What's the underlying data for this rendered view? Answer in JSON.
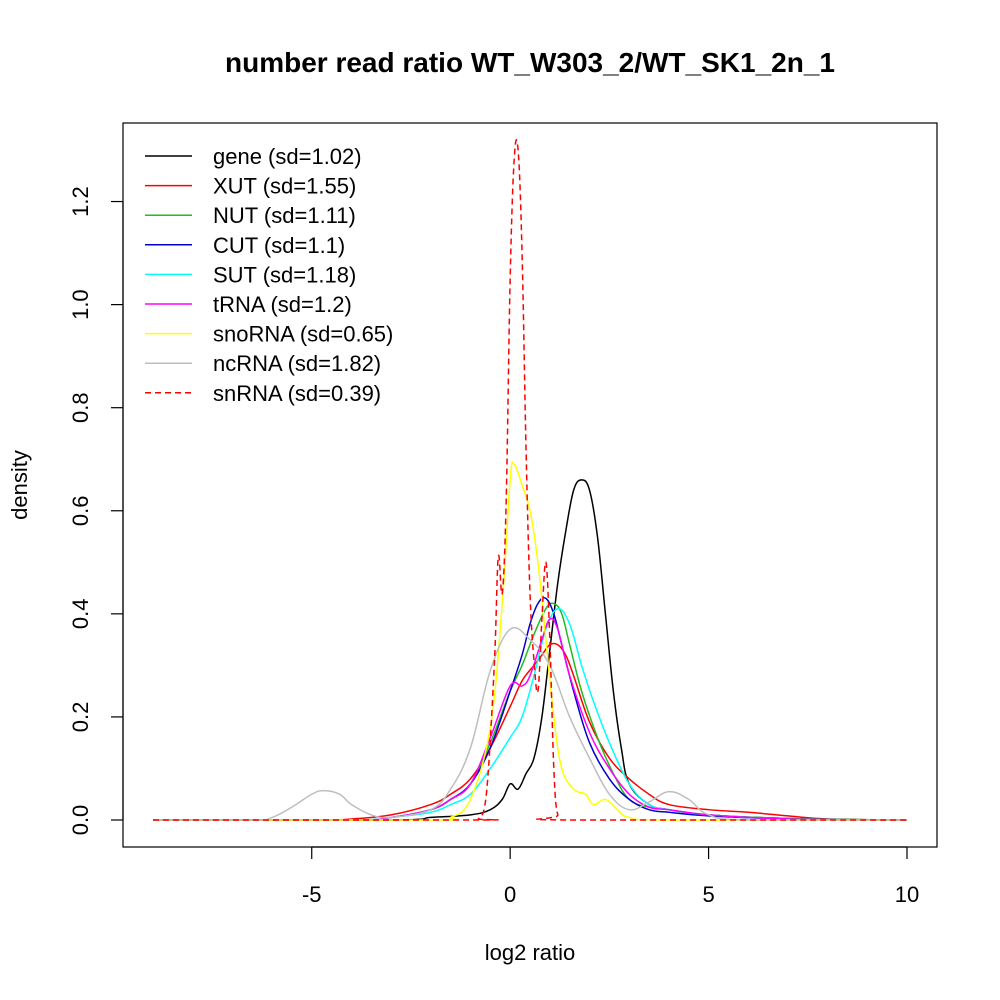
{
  "chart_data": {
    "type": "line",
    "title": "number read ratio WT_W303_2/WT_SK1_2n_1",
    "xlabel": "log2 ratio",
    "ylabel": "density",
    "xlim": [
      -9,
      10
    ],
    "ylim": [
      0,
      1.3
    ],
    "x_ticks": [
      -5,
      0,
      5,
      10
    ],
    "x_tick_labels": [
      "-5",
      "0",
      "5",
      "10"
    ],
    "y_ticks": [
      0.0,
      0.2,
      0.4,
      0.6,
      0.8,
      1.0,
      1.2
    ],
    "y_tick_labels": [
      "0.0",
      "0.2",
      "0.4",
      "0.6",
      "0.8",
      "1.0",
      "1.2"
    ],
    "grid": false,
    "legend_position": "top-left",
    "series": [
      {
        "name": "gene (sd=1.02)",
        "color": "#000000",
        "dash": "solid",
        "x": [
          -9,
          -3,
          -2,
          -1,
          -0.5,
          -0.2,
          0,
          0.2,
          0.4,
          0.6,
          0.8,
          1.0,
          1.2,
          1.4,
          1.6,
          1.8,
          2.0,
          2.2,
          2.4,
          2.6,
          2.8,
          3.0,
          3.5,
          4,
          5,
          7,
          10
        ],
        "y": [
          0,
          0,
          0.005,
          0.01,
          0.02,
          0.04,
          0.07,
          0.06,
          0.09,
          0.12,
          0.2,
          0.33,
          0.46,
          0.56,
          0.64,
          0.66,
          0.64,
          0.55,
          0.4,
          0.25,
          0.14,
          0.07,
          0.03,
          0.02,
          0.01,
          0.003,
          0
        ]
      },
      {
        "name": "XUT (sd=1.55)",
        "color": "#ff0000",
        "dash": "solid",
        "x": [
          -9,
          -5,
          -4,
          -3,
          -2,
          -1.5,
          -1,
          -0.5,
          0,
          0.3,
          0.6,
          0.8,
          1.0,
          1.2,
          1.4,
          1.6,
          2.0,
          2.5,
          3.0,
          3.5,
          4.0,
          5.0,
          6.0,
          7.0,
          8.0,
          10
        ],
        "y": [
          0,
          0,
          0.002,
          0.01,
          0.03,
          0.05,
          0.08,
          0.14,
          0.22,
          0.27,
          0.3,
          0.32,
          0.34,
          0.34,
          0.32,
          0.28,
          0.19,
          0.12,
          0.08,
          0.05,
          0.03,
          0.02,
          0.015,
          0.008,
          0.002,
          0
        ]
      },
      {
        "name": "NUT (sd=1.11)",
        "color": "#22bb22",
        "dash": "solid",
        "x": [
          -9,
          -4,
          -3,
          -2,
          -1.5,
          -1,
          -0.5,
          0,
          0.3,
          0.6,
          0.9,
          1.1,
          1.3,
          1.5,
          1.8,
          2.2,
          2.6,
          3.0,
          3.5,
          4.0,
          5.0,
          7.0,
          10
        ],
        "y": [
          0,
          0,
          0.005,
          0.02,
          0.04,
          0.07,
          0.15,
          0.25,
          0.3,
          0.36,
          0.41,
          0.42,
          0.4,
          0.34,
          0.25,
          0.16,
          0.09,
          0.04,
          0.025,
          0.02,
          0.01,
          0.003,
          0
        ]
      },
      {
        "name": "CUT (sd=1.1)",
        "color": "#0000cc",
        "dash": "solid",
        "x": [
          -9,
          -4,
          -3,
          -2,
          -1.5,
          -1,
          -0.5,
          0,
          0.3,
          0.5,
          0.7,
          0.9,
          1.1,
          1.3,
          1.6,
          2.0,
          2.5,
          3.0,
          3.5,
          4.0,
          5.0,
          7.0,
          10
        ],
        "y": [
          0,
          0,
          0.005,
          0.02,
          0.04,
          0.07,
          0.14,
          0.25,
          0.32,
          0.38,
          0.42,
          0.43,
          0.4,
          0.34,
          0.25,
          0.15,
          0.08,
          0.04,
          0.02,
          0.015,
          0.008,
          0.002,
          0
        ]
      },
      {
        "name": "SUT (sd=1.18)",
        "color": "#00ffff",
        "dash": "solid",
        "x": [
          -9,
          -4,
          -3,
          -2,
          -1.5,
          -1,
          -0.5,
          0,
          0.3,
          0.6,
          0.9,
          1.2,
          1.5,
          1.8,
          2.1,
          2.5,
          3.0,
          3.5,
          4.0,
          5.0,
          7.0,
          10
        ],
        "y": [
          0,
          0,
          0.005,
          0.015,
          0.03,
          0.05,
          0.1,
          0.16,
          0.2,
          0.28,
          0.37,
          0.41,
          0.38,
          0.3,
          0.23,
          0.15,
          0.07,
          0.03,
          0.02,
          0.01,
          0.002,
          0
        ]
      },
      {
        "name": "tRNA (sd=1.2)",
        "color": "#ff00ff",
        "dash": "solid",
        "x": [
          -9,
          -4,
          -3,
          -2,
          -1.5,
          -1,
          -0.5,
          0,
          0.3,
          0.5,
          0.8,
          1.0,
          1.2,
          1.5,
          2.0,
          2.5,
          3.0,
          3.5,
          4.0,
          5.0,
          7.0,
          10
        ],
        "y": [
          0,
          0,
          0.005,
          0.02,
          0.04,
          0.07,
          0.16,
          0.26,
          0.26,
          0.28,
          0.35,
          0.39,
          0.37,
          0.28,
          0.17,
          0.1,
          0.05,
          0.025,
          0.02,
          0.01,
          0.002,
          0
        ]
      },
      {
        "name": "snoRNA (sd=0.65)",
        "color": "#ffff00",
        "dash": "solid",
        "x": [
          -9,
          -2,
          -1.5,
          -1,
          -0.5,
          -0.2,
          0,
          0.1,
          0.3,
          0.5,
          0.7,
          0.9,
          1.1,
          1.3,
          1.6,
          1.9,
          2.1,
          2.4,
          2.7,
          3.0,
          4,
          10
        ],
        "y": [
          0,
          0,
          0.005,
          0.04,
          0.18,
          0.42,
          0.66,
          0.69,
          0.65,
          0.6,
          0.5,
          0.35,
          0.2,
          0.1,
          0.06,
          0.05,
          0.03,
          0.04,
          0.02,
          0.005,
          0,
          0
        ]
      },
      {
        "name": "ncRNA (sd=1.82)",
        "color": "#bebebe",
        "dash": "solid",
        "x": [
          -9,
          -6.5,
          -6,
          -5.5,
          -5,
          -4.7,
          -4.3,
          -4,
          -3.5,
          -3,
          -2,
          -1.5,
          -1,
          -0.5,
          0,
          0.5,
          1.0,
          1.5,
          2.0,
          2.5,
          3.0,
          3.5,
          4.0,
          4.5,
          5.0,
          6,
          10
        ],
        "y": [
          0,
          0,
          0.005,
          0.025,
          0.05,
          0.057,
          0.05,
          0.03,
          0.01,
          0.005,
          0.02,
          0.06,
          0.14,
          0.29,
          0.37,
          0.35,
          0.3,
          0.2,
          0.12,
          0.05,
          0.02,
          0.035,
          0.055,
          0.04,
          0.01,
          0,
          0
        ]
      },
      {
        "name": "snRNA (sd=0.39)",
        "color": "#ff0000",
        "dash": "dashed",
        "x": [
          -9,
          -1,
          -0.8,
          -0.6,
          -0.4,
          -0.3,
          -0.2,
          -0.1,
          0,
          0.1,
          0.2,
          0.3,
          0.4,
          0.5,
          0.6,
          0.7,
          0.8,
          0.9,
          1.0,
          1.1,
          1.2,
          1.4,
          10
        ],
        "y": [
          0,
          0,
          0.002,
          0.05,
          0.3,
          0.51,
          0.44,
          0.62,
          1.05,
          1.28,
          1.3,
          1.1,
          0.72,
          0.44,
          0.31,
          0.25,
          0.39,
          0.5,
          0.35,
          0.1,
          0.01,
          0,
          0
        ]
      }
    ]
  }
}
